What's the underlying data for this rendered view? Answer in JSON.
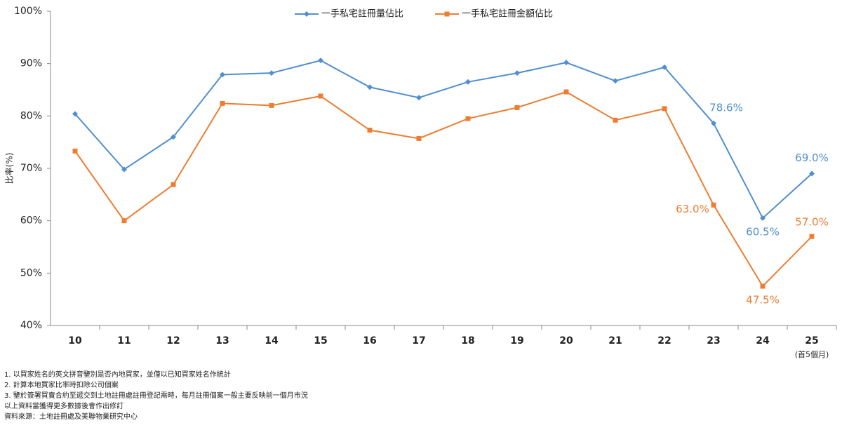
{
  "chart_data": {
    "type": "line",
    "y_label": "比率(%)",
    "categories": [
      "10",
      "11",
      "12",
      "13",
      "14",
      "15",
      "16",
      "17",
      "18",
      "19",
      "20",
      "21",
      "22",
      "23",
      "24",
      "25"
    ],
    "category_notes": [
      null,
      null,
      null,
      null,
      null,
      null,
      null,
      null,
      null,
      null,
      null,
      null,
      null,
      null,
      null,
      "(首5個月)"
    ],
    "series": [
      {
        "name": "一手私宅註冊量佔比",
        "color": "#4f8fd0",
        "marker": "diamond",
        "values": [
          80.4,
          69.8,
          76.0,
          87.9,
          88.2,
          90.6,
          85.5,
          83.5,
          86.5,
          88.2,
          90.2,
          86.7,
          89.3,
          78.6,
          60.5,
          69.0
        ],
        "value_labels": [
          null,
          null,
          null,
          null,
          null,
          null,
          null,
          null,
          null,
          null,
          null,
          null,
          null,
          "78.6%",
          "60.5%",
          "69.0%"
        ]
      },
      {
        "name": "一手私宅註冊金額佔比",
        "color": "#ed7d31",
        "marker": "square",
        "values": [
          73.3,
          60.0,
          66.9,
          82.4,
          82.0,
          83.8,
          77.3,
          75.7,
          79.5,
          81.6,
          84.6,
          79.2,
          81.4,
          63.0,
          47.5,
          57.0
        ],
        "value_labels": [
          null,
          null,
          null,
          null,
          null,
          null,
          null,
          null,
          null,
          null,
          null,
          null,
          null,
          "63.0%",
          "47.5%",
          "57.0%"
        ]
      }
    ],
    "ylim": [
      40,
      100
    ],
    "yticks": [
      {
        "value": 40,
        "label": "40%"
      },
      {
        "value": 50,
        "label": "50%"
      },
      {
        "value": 60,
        "label": "60%"
      },
      {
        "value": 70,
        "label": "70%"
      },
      {
        "value": 80,
        "label": "80%"
      },
      {
        "value": 90,
        "label": "90%"
      },
      {
        "value": 100,
        "label": "100%"
      }
    ],
    "grid": false,
    "legend": "top",
    "notes": [
      "1. 以買家姓名的英文拼音鑒別是否內地買家，並僅以已知買家姓名作統計",
      "2. 計算本地買家比率時扣除公司個案",
      "3. 鑒於簽署買賣合約至遞交到土地註冊處註冊登記需時，每月註冊個案一般主要反映前一個月市況",
      "以上資料當獲得更多數據後會作出修訂",
      "資料來源：土地註冊處及美聯物業研究中心"
    ]
  }
}
